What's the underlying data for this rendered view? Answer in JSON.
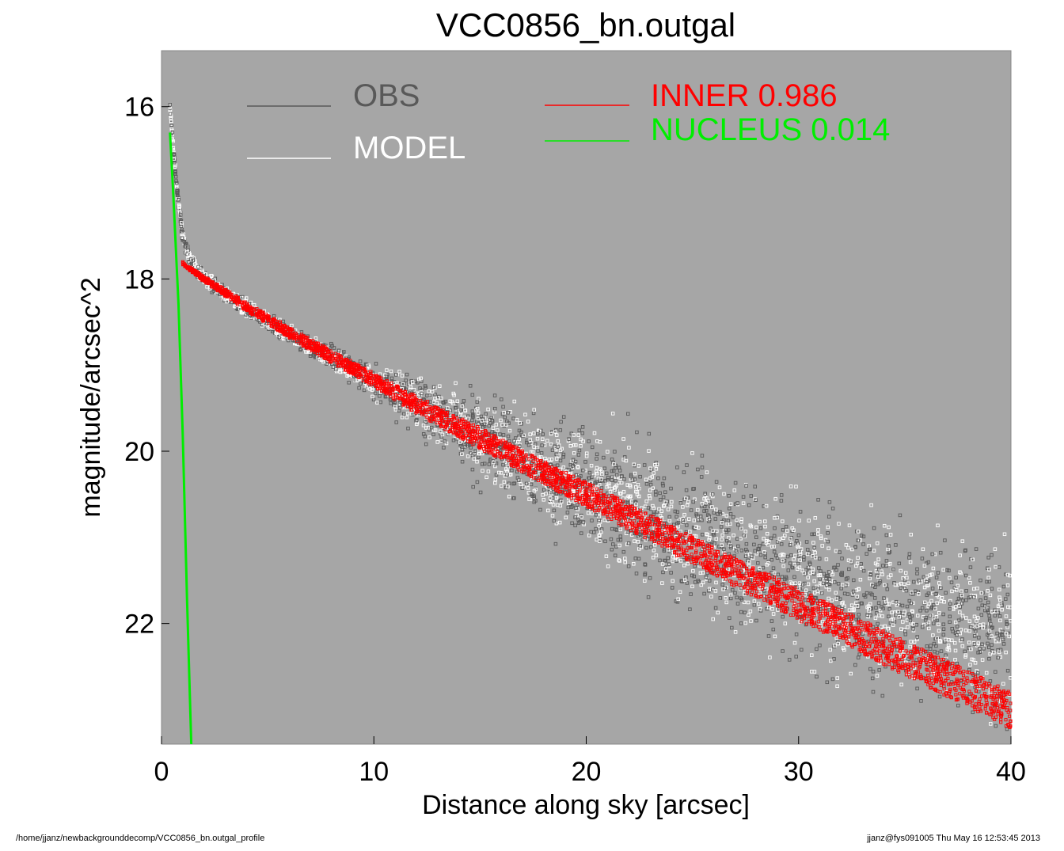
{
  "chart_data": {
    "type": "scatter",
    "title": "VCC0856_bn.outgal",
    "xlabel": "Distance along sky [arcsec]",
    "ylabel": "magnitude/arcsec^2",
    "xlim": [
      0,
      40
    ],
    "ylim": [
      23.4,
      15.35
    ],
    "y_inverted": true,
    "x_ticks": [
      0,
      10,
      20,
      30,
      40
    ],
    "y_ticks": [
      16,
      18,
      20,
      22
    ],
    "background_color": "#a6a6a6",
    "grid": false,
    "legend": [
      {
        "label": "OBS",
        "value": "",
        "color": "#595959"
      },
      {
        "label": "MODEL",
        "value": "",
        "color": "#ffffff"
      },
      {
        "label": "INNER",
        "value": "0.986",
        "color": "#ff0000"
      },
      {
        "label": "NUCLEUS",
        "value": "0.014",
        "color": "#00ee00"
      }
    ],
    "series": [
      {
        "name": "OBS",
        "kind": "scatter",
        "color": "#595959",
        "trend_x": [
          0.4,
          0.7,
          1.0,
          1.3,
          1.7,
          2.0,
          3.0,
          4.0,
          6.0,
          8.0,
          10.0,
          12.0,
          15.0,
          18.0,
          20.0,
          25.0,
          30.0,
          35.0,
          40.0
        ],
        "trend_y": [
          16.0,
          16.9,
          17.5,
          17.75,
          17.9,
          17.98,
          18.18,
          18.35,
          18.65,
          18.92,
          19.18,
          19.46,
          19.83,
          20.2,
          20.45,
          21.0,
          21.5,
          21.9,
          22.1
        ],
        "spread_y": [
          0.05,
          0.05,
          0.06,
          0.06,
          0.06,
          0.06,
          0.07,
          0.08,
          0.09,
          0.1,
          0.15,
          0.22,
          0.35,
          0.45,
          0.55,
          0.65,
          0.7,
          0.75,
          0.8
        ]
      },
      {
        "name": "MODEL",
        "kind": "scatter",
        "color": "#ffffff",
        "trend_x": [
          0.4,
          0.7,
          1.0,
          1.3,
          1.7,
          2.0,
          3.0,
          4.0,
          6.0,
          8.0,
          10.0,
          12.0,
          15.0,
          18.0,
          20.0,
          25.0,
          30.0,
          35.0,
          40.0
        ],
        "trend_y": [
          16.0,
          16.9,
          17.5,
          17.75,
          17.9,
          17.98,
          18.18,
          18.35,
          18.65,
          18.92,
          19.18,
          19.46,
          19.83,
          20.2,
          20.45,
          21.0,
          21.5,
          21.9,
          22.1
        ],
        "spread_y": [
          0.05,
          0.05,
          0.06,
          0.06,
          0.06,
          0.06,
          0.07,
          0.08,
          0.09,
          0.1,
          0.15,
          0.22,
          0.35,
          0.45,
          0.55,
          0.65,
          0.7,
          0.75,
          0.8
        ]
      },
      {
        "name": "INNER",
        "kind": "band",
        "color": "#ff0000",
        "x_start": 1.0,
        "x_end": 40.0,
        "x": [
          1.0,
          2.0,
          4.0,
          6.0,
          8.0,
          10.0,
          12.0,
          15.0,
          18.0,
          20.0,
          25.0,
          30.0,
          35.0,
          40.0
        ],
        "y": [
          17.82,
          18.0,
          18.32,
          18.62,
          18.9,
          19.17,
          19.46,
          19.85,
          20.25,
          20.5,
          21.15,
          21.78,
          22.4,
          23.0
        ],
        "half_width": [
          0.02,
          0.03,
          0.05,
          0.06,
          0.07,
          0.08,
          0.1,
          0.12,
          0.13,
          0.14,
          0.16,
          0.18,
          0.2,
          0.22
        ]
      },
      {
        "name": "NUCLEUS",
        "kind": "line",
        "color": "#00ee00",
        "x": [
          0.4,
          0.55,
          0.8,
          1.0,
          1.2,
          1.4
        ],
        "y": [
          16.3,
          17.0,
          18.3,
          19.8,
          21.7,
          23.4
        ]
      }
    ]
  },
  "footer": {
    "left": "/home/jjanz/newbackgrounddecomp/VCC0856_bn.outgal_profile",
    "right": "jjanz@fys091005  Thu May 16 12:53:45 2013"
  }
}
